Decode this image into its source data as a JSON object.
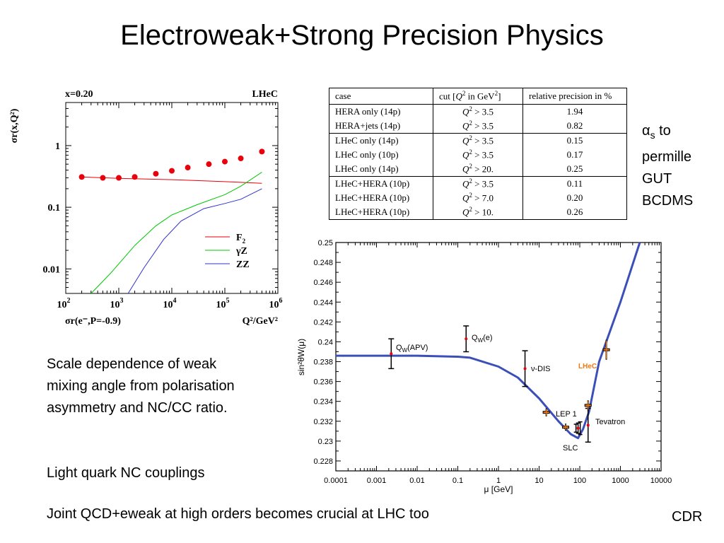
{
  "slide": {
    "title": "Electroweak+Strong Precision Physics",
    "caption_scale": "Scale dependence of weak mixing angle from polarisation asymmetry and NC/CC ratio.",
    "caption_light_quark": "Light quark NC couplings",
    "footer_note": "Joint QCD+eweak at high orders becomes crucial at LHC too",
    "cdr_label": "CDR",
    "alpha_s_symbol": "α",
    "alpha_s_sub": "s",
    "alpha_s_to": " to",
    "side_lines": [
      "permille",
      "GUT",
      "BCDMS"
    ]
  },
  "precision_table": {
    "headers": {
      "case": "case",
      "cut_prefix": "cut [",
      "cut_q": "Q",
      "cut_exp": "2",
      "cut_suffix": " in GeV",
      "cut_unit_exp": "2",
      "cut_close": "]",
      "precision": "relative precision in %"
    },
    "rows": [
      {
        "case": "HERA only (14p)",
        "cut": "> 3.5",
        "precision": "1.94"
      },
      {
        "case": "HERA+jets (14p)",
        "cut": "> 3.5",
        "precision": "0.82"
      },
      {
        "case": "LHeC only (14p)",
        "cut": "> 3.5",
        "precision": "0.15"
      },
      {
        "case": "LHeC only (10p)",
        "cut": "> 3.5",
        "precision": "0.17"
      },
      {
        "case": "LHeC only (14p)",
        "cut": "> 20.",
        "precision": "0.25"
      },
      {
        "case": "LHeC+HERA (10p)",
        "cut": "> 3.5",
        "precision": "0.11"
      },
      {
        "case": "LHeC+HERA (10p)",
        "cut": "> 7.0",
        "precision": "0.20"
      },
      {
        "case": "LHeC+HERA (10p)",
        "cut": "> 10.",
        "precision": "0.26"
      }
    ],
    "group_end_rows": [
      1,
      4
    ]
  },
  "chart_data": [
    {
      "type": "scatter",
      "corner_left": "x=0.20",
      "corner_right": "LHeC",
      "ylabel": "σr(x,Q²)",
      "xlabel": "Q²/GeV²",
      "sublabel": "σr(e⁻,P=-0.9)",
      "xscale": "log",
      "yscale": "log",
      "xlim": [
        100,
        1000000
      ],
      "ylim": [
        0.004,
        5
      ],
      "xticks": [
        {
          "value": 100,
          "label": "10",
          "exp": "2"
        },
        {
          "value": 1000,
          "label": "10",
          "exp": "3"
        },
        {
          "value": 10000,
          "label": "10",
          "exp": "4"
        },
        {
          "value": 100000,
          "label": "10",
          "exp": "5"
        },
        {
          "value": 1000000,
          "label": "10",
          "exp": "6"
        }
      ],
      "yticks": [
        {
          "value": 1,
          "label": "1"
        },
        {
          "value": 0.1,
          "label": "0.1"
        },
        {
          "value": 0.01,
          "label": "0.01"
        }
      ],
      "legend": [
        {
          "name": "F",
          "sub": "2",
          "color": "#e8000b"
        },
        {
          "name": "γZ",
          "sub": "",
          "color": "#00c800"
        },
        {
          "name": "ZZ",
          "sub": "",
          "color": "#3030d0"
        }
      ],
      "points": {
        "name": "σr(e⁻,P=-0.9)",
        "color": "#e8000b",
        "x": [
          200,
          500,
          1000,
          2000,
          5000,
          10000,
          20000,
          50000,
          100000,
          200000,
          500000
        ],
        "y": [
          0.31,
          0.3,
          0.3,
          0.31,
          0.35,
          0.39,
          0.44,
          0.5,
          0.55,
          0.62,
          0.8
        ]
      },
      "series": [
        {
          "name": "F2",
          "color": "#e8000b",
          "x": [
            200,
            1000,
            10000,
            100000,
            500000
          ],
          "y": [
            0.31,
            0.295,
            0.28,
            0.26,
            0.245
          ]
        },
        {
          "name": "γZ",
          "color": "#00c800",
          "x": [
            300,
            700,
            2000,
            5000,
            10000,
            30000,
            100000,
            200000,
            500000
          ],
          "y": [
            0.004,
            0.0085,
            0.024,
            0.05,
            0.075,
            0.11,
            0.16,
            0.22,
            0.37
          ]
        },
        {
          "name": "ZZ",
          "color": "#3030d0",
          "x": [
            1500,
            3000,
            7000,
            15000,
            40000,
            100000,
            200000,
            500000
          ],
          "y": [
            0.004,
            0.0105,
            0.03,
            0.06,
            0.095,
            0.115,
            0.135,
            0.2
          ]
        }
      ]
    },
    {
      "type": "line",
      "ylabel": "sin²θW(μ)",
      "xlabel": "μ [GeV]",
      "xscale": "log",
      "xlim": [
        0.0001,
        10000
      ],
      "ylim": [
        0.227,
        0.25
      ],
      "xticks": [
        "0.0001",
        "0.001",
        "0.01",
        "0.1",
        "1",
        "10",
        "100",
        "1000",
        "10000"
      ],
      "yticks": [
        "0.228",
        "0.23",
        "0.232",
        "0.234",
        "0.236",
        "0.238",
        "0.24",
        "0.242",
        "0.244",
        "0.246",
        "0.248",
        "0.25"
      ],
      "curve": {
        "color": "#3a50b8",
        "x": [
          0.0001,
          0.001,
          0.01,
          0.1,
          0.2,
          1,
          3,
          10,
          30,
          60,
          91,
          120,
          170,
          300,
          1000,
          3000
        ],
        "y": [
          0.2386,
          0.2386,
          0.2386,
          0.2385,
          0.2384,
          0.2375,
          0.2364,
          0.2343,
          0.232,
          0.2307,
          0.2303,
          0.2312,
          0.233,
          0.238,
          0.244,
          0.2502
        ]
      },
      "measurements": [
        {
          "label": "QW(APV)",
          "x": 0.0023,
          "y": 0.2388,
          "err": 0.0015
        },
        {
          "label": "QW(e)",
          "x": 0.16,
          "y": 0.2403,
          "err": 0.0013
        },
        {
          "label": "ν-DIS",
          "x": 4.5,
          "y": 0.2373,
          "err": 0.0018
        },
        {
          "label": "Tevatron",
          "x": 160,
          "y": 0.2316,
          "err": 0.0017
        }
      ],
      "lhec_points": [
        {
          "x": 15,
          "y": 0.2329,
          "err": 0.0004
        },
        {
          "x": 45,
          "y": 0.2314,
          "err": 0.0003
        },
        {
          "x": 160,
          "y": 0.2336,
          "err": 0.0005
        },
        {
          "x": 450,
          "y": 0.2392,
          "err": 0.001
        }
      ],
      "z_pole": {
        "x": 91,
        "y": 0.2313,
        "err": 0.0004
      },
      "labels": {
        "qw_apv": "Q",
        "qw_apv_sub": "W",
        "qw_apv_suffix": "(APV)",
        "qw_e": "Q",
        "qw_e_sub": "W",
        "qw_e_suffix": "(e)",
        "nu_dis": "ν-DIS",
        "lhec": "LHeC",
        "lep1": "LEP 1",
        "slc": "SLC",
        "tevatron": "Tevatron"
      },
      "colors": {
        "lhec": "#f07a10",
        "measurement": "#e8000b"
      }
    }
  ]
}
